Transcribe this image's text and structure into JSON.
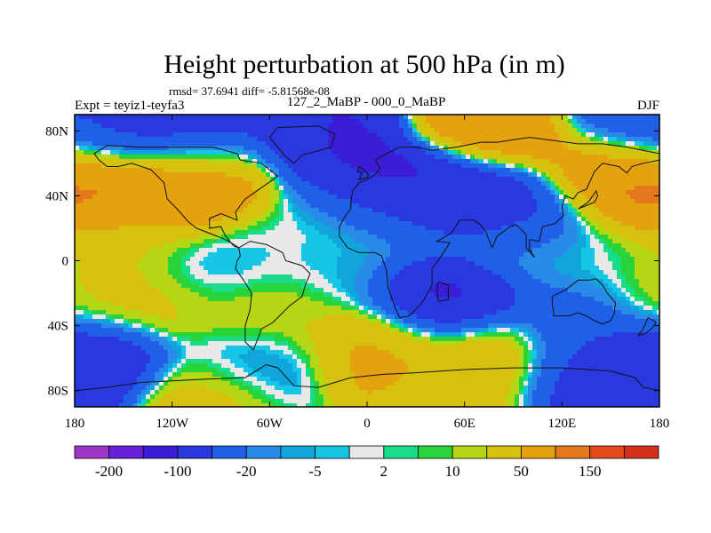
{
  "chart_data": {
    "type": "heatmap",
    "title": "Height perturbation at 500 hPa (in m)",
    "stats": "rmsd= 37.6941 diff= -5.81568e-08",
    "experiment": "Expt = teyiz1-teyfa3",
    "comparison": "127_2_MaBP - 000_0_MaBP",
    "season": "DJF",
    "x_ticks": [
      "180",
      "120W",
      "60W",
      "0",
      "60E",
      "120E",
      "180"
    ],
    "x_tick_values": [
      -180,
      -120,
      -60,
      0,
      60,
      120,
      180
    ],
    "y_ticks": [
      "80N",
      "40N",
      "0",
      "40S",
      "80S"
    ],
    "y_tick_values": [
      80,
      40,
      0,
      -40,
      -80
    ],
    "xlim": [
      -180,
      180
    ],
    "ylim": [
      -90,
      90
    ],
    "colorbar": {
      "levels": [
        -200,
        -150,
        -100,
        -50,
        -20,
        -10,
        -5,
        -2,
        2,
        5,
        10,
        20,
        50,
        100,
        150,
        200
      ],
      "labels": [
        "-200",
        "-100",
        "-20",
        "-5",
        "2",
        "10",
        "50",
        "150"
      ],
      "colors": [
        "#9e36c8",
        "#6a1fd8",
        "#3a1ed6",
        "#2a38e0",
        "#2060e8",
        "#2a8ae8",
        "#10a6dc",
        "#16c6e6",
        "#e8e8e8",
        "#19dc8a",
        "#28d43a",
        "#b4d614",
        "#d6c20e",
        "#e4a20e",
        "#e4781c",
        "#e44a1c",
        "#d4301a"
      ]
    },
    "features": [
      {
        "lon": -172,
        "lat": 45,
        "value": 120
      },
      {
        "lon": -115,
        "lat": 45,
        "value": 150
      },
      {
        "lon": -100,
        "lat": 62,
        "value": 40
      },
      {
        "lon": -110,
        "lat": 77,
        "value": -120
      },
      {
        "lon": -155,
        "lat": 80,
        "value": -60
      },
      {
        "lon": -30,
        "lat": 80,
        "value": -100
      },
      {
        "lon": 10,
        "lat": 45,
        "value": -150
      },
      {
        "lon": 55,
        "lat": 40,
        "value": -180
      },
      {
        "lon": 95,
        "lat": 30,
        "value": -80
      },
      {
        "lon": 75,
        "lat": 75,
        "value": 100
      },
      {
        "lon": 150,
        "lat": 50,
        "value": 110
      },
      {
        "lon": 165,
        "lat": 82,
        "value": -50
      },
      {
        "lon": -10,
        "lat": 30,
        "value": 12
      },
      {
        "lon": 40,
        "lat": 30,
        "value": 15
      },
      {
        "lon": 95,
        "lat": 12,
        "value": 0
      },
      {
        "lon": 140,
        "lat": 0,
        "value": 0
      },
      {
        "lon": -60,
        "lat": 8,
        "value": 0
      },
      {
        "lon": -145,
        "lat": 15,
        "value": 25
      },
      {
        "lon": -100,
        "lat": -5,
        "value": -20
      },
      {
        "lon": -20,
        "lat": -5,
        "value": -8
      },
      {
        "lon": 50,
        "lat": -25,
        "value": -120
      },
      {
        "lon": 130,
        "lat": -35,
        "value": -40
      },
      {
        "lon": -175,
        "lat": -20,
        "value": 25
      },
      {
        "lon": -130,
        "lat": -22,
        "value": 35
      },
      {
        "lon": -60,
        "lat": -30,
        "value": 25
      },
      {
        "lon": 10,
        "lat": -55,
        "value": 60
      },
      {
        "lon": 75,
        "lat": -58,
        "value": 60
      },
      {
        "lon": -170,
        "lat": -62,
        "value": -100
      },
      {
        "lon": -70,
        "lat": -65,
        "value": -20
      },
      {
        "lon": 140,
        "lat": -62,
        "value": -60
      },
      {
        "lon": -100,
        "lat": -85,
        "value": 40
      },
      {
        "lon": 60,
        "lat": -85,
        "value": 30
      },
      {
        "lon": 140,
        "lat": -82,
        "value": -80
      }
    ]
  }
}
